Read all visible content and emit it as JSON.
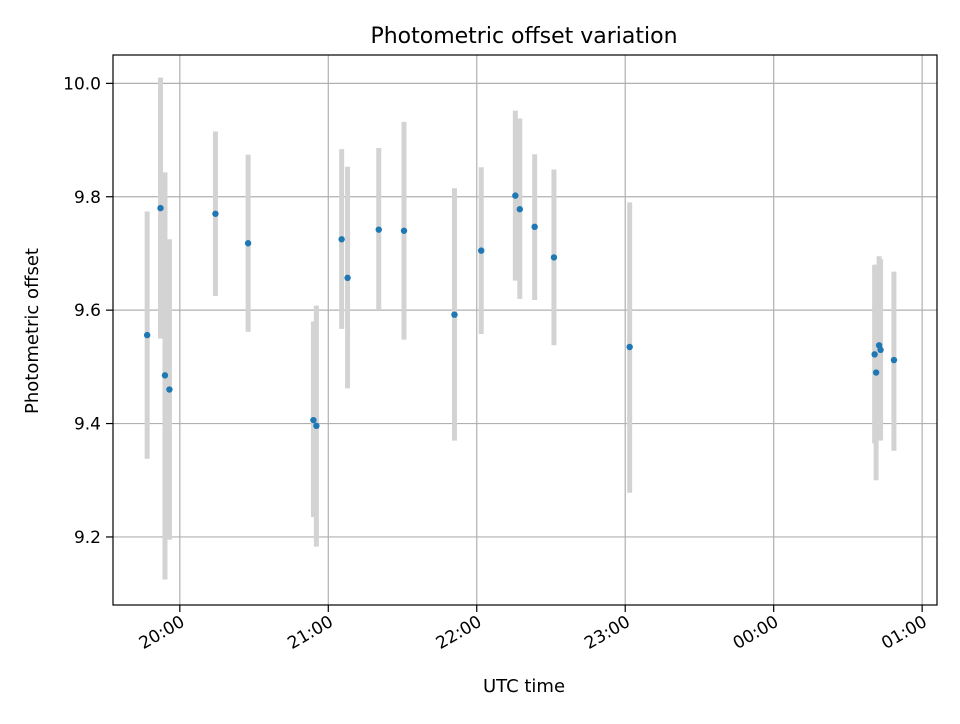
{
  "chart_data": {
    "type": "scatter",
    "title": "Photometric offset variation",
    "xlabel": "UTC time",
    "ylabel": "Photometric offset",
    "x_unit": "hours",
    "x_day_start": "2000-01-01",
    "xlim": [
      19.55,
      25.1
    ],
    "ylim": [
      9.08,
      10.05
    ],
    "xticks": [
      20,
      21,
      22,
      23,
      24,
      25
    ],
    "xtick_labels": [
      "20:00",
      "21:00",
      "22:00",
      "23:00",
      "00:00",
      "01:00"
    ],
    "yticks": [
      9.2,
      9.4,
      9.6,
      9.8,
      10.0
    ],
    "ytick_labels": [
      "9.2",
      "9.4",
      "9.6",
      "9.8",
      "10.0"
    ],
    "grid": true,
    "legend": "none",
    "colors": {
      "point": "#1f77b4",
      "errorbar": "#d3d3d3",
      "grid": "#b0b0b0"
    },
    "points": [
      {
        "x": 19.78,
        "y": 9.556,
        "ylo": 9.338,
        "yhi": 9.774
      },
      {
        "x": 19.87,
        "y": 9.78,
        "ylo": 9.55,
        "yhi": 10.01
      },
      {
        "x": 19.9,
        "y": 9.485,
        "ylo": 9.125,
        "yhi": 9.843
      },
      {
        "x": 19.93,
        "y": 9.46,
        "ylo": 9.195,
        "yhi": 9.725
      },
      {
        "x": 20.24,
        "y": 9.77,
        "ylo": 9.625,
        "yhi": 9.915
      },
      {
        "x": 20.46,
        "y": 9.718,
        "ylo": 9.562,
        "yhi": 9.874
      },
      {
        "x": 20.9,
        "y": 9.406,
        "ylo": 9.235,
        "yhi": 9.58
      },
      {
        "x": 20.92,
        "y": 9.396,
        "ylo": 9.183,
        "yhi": 9.608
      },
      {
        "x": 21.09,
        "y": 9.725,
        "ylo": 9.567,
        "yhi": 9.884
      },
      {
        "x": 21.13,
        "y": 9.657,
        "ylo": 9.462,
        "yhi": 9.853
      },
      {
        "x": 21.34,
        "y": 9.742,
        "ylo": 9.6,
        "yhi": 9.886
      },
      {
        "x": 21.51,
        "y": 9.74,
        "ylo": 9.548,
        "yhi": 9.932
      },
      {
        "x": 21.85,
        "y": 9.592,
        "ylo": 9.37,
        "yhi": 9.815
      },
      {
        "x": 22.03,
        "y": 9.705,
        "ylo": 9.558,
        "yhi": 9.852
      },
      {
        "x": 22.26,
        "y": 9.802,
        "ylo": 9.652,
        "yhi": 9.952
      },
      {
        "x": 22.29,
        "y": 9.778,
        "ylo": 9.62,
        "yhi": 9.938
      },
      {
        "x": 22.39,
        "y": 9.747,
        "ylo": 9.618,
        "yhi": 9.875
      },
      {
        "x": 22.52,
        "y": 9.693,
        "ylo": 9.538,
        "yhi": 9.848
      },
      {
        "x": 23.03,
        "y": 9.535,
        "ylo": 9.278,
        "yhi": 9.79
      },
      {
        "x": 24.68,
        "y": 9.522,
        "ylo": 9.365,
        "yhi": 9.68
      },
      {
        "x": 24.69,
        "y": 9.49,
        "ylo": 9.3,
        "yhi": 9.68
      },
      {
        "x": 24.71,
        "y": 9.538,
        "ylo": 9.38,
        "yhi": 9.695
      },
      {
        "x": 24.72,
        "y": 9.53,
        "ylo": 9.37,
        "yhi": 9.69
      },
      {
        "x": 24.81,
        "y": 9.512,
        "ylo": 9.352,
        "yhi": 9.668
      }
    ]
  }
}
